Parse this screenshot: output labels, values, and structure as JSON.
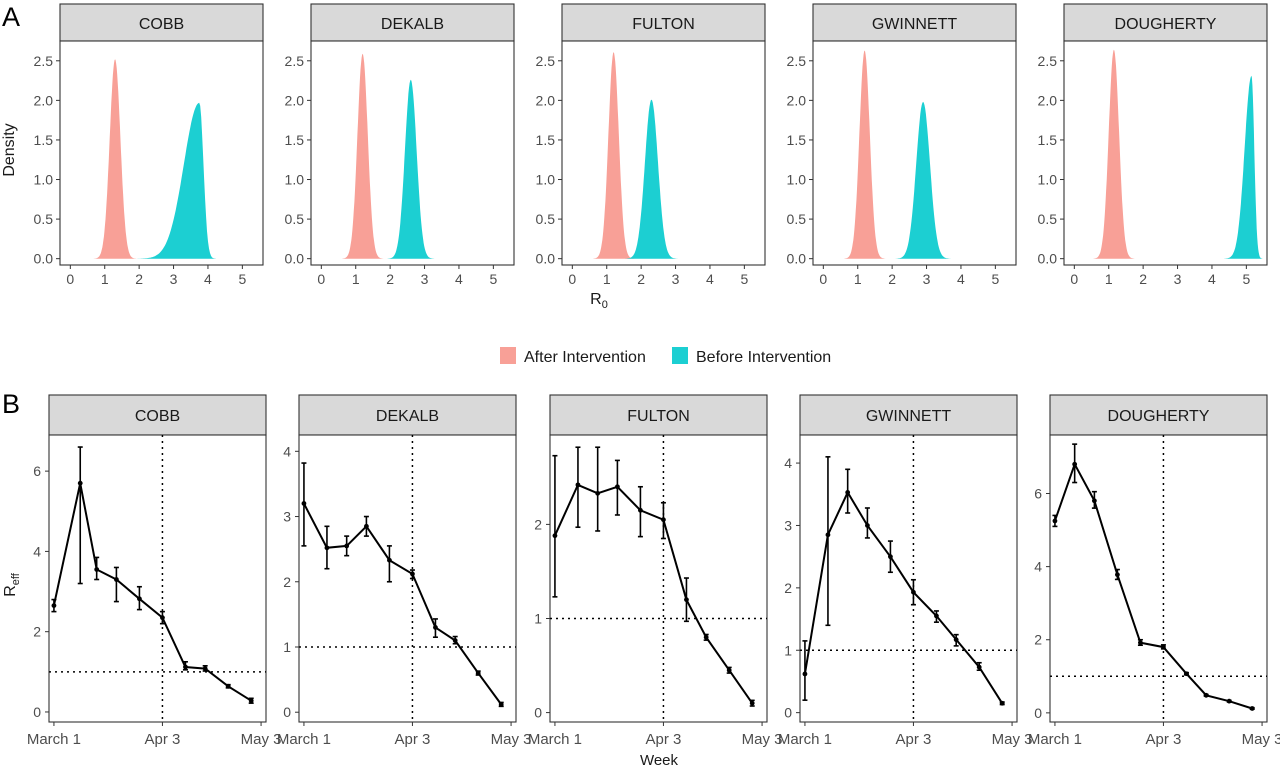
{
  "panel_labels": {
    "a": "A",
    "b": "B"
  },
  "legend": {
    "items": [
      {
        "label": "After Intervention",
        "color": "#F8A097"
      },
      {
        "label": "Before Intervention",
        "color": "#1CCFD2"
      }
    ]
  },
  "colors": {
    "after": "#F8A097",
    "before": "#1CCFD2",
    "strip_bg": "#D9D9D9",
    "line": "#000000"
  },
  "chart_data": [
    {
      "type": "area",
      "xlabel": "R",
      "xlabel_sub": "0",
      "ylabel": "Density",
      "xlim": [
        -0.3,
        5.6
      ],
      "ylim": [
        -0.08,
        2.75
      ],
      "xticks": [
        0,
        1,
        2,
        3,
        4,
        5
      ],
      "yticks": [
        "0.0",
        "0.5",
        "1.0",
        "1.5",
        "2.0",
        "2.5"
      ],
      "grid": false,
      "legend_position": "bottom",
      "panels": [
        {
          "name": "COBB",
          "series": [
            {
              "name": "After Intervention",
              "peak_x": 1.3,
              "peak_density": 2.52,
              "sd": 0.155
            },
            {
              "name": "Before Intervention",
              "peak_x": 3.75,
              "peak_density": 1.97,
              "sd_left": 0.45,
              "sd_right": 0.12
            }
          ]
        },
        {
          "name": "DEKALB",
          "series": [
            {
              "name": "After Intervention",
              "peak_x": 1.2,
              "peak_density": 2.59,
              "sd": 0.15
            },
            {
              "name": "Before Intervention",
              "peak_x": 2.6,
              "peak_density": 2.26,
              "sd": 0.17
            }
          ]
        },
        {
          "name": "FULTON",
          "series": [
            {
              "name": "After Intervention",
              "peak_x": 1.2,
              "peak_density": 2.61,
              "sd": 0.15
            },
            {
              "name": "Before Intervention",
              "peak_x": 2.3,
              "peak_density": 2.01,
              "sd": 0.19
            }
          ]
        },
        {
          "name": "GWINNETT",
          "series": [
            {
              "name": "After Intervention",
              "peak_x": 1.2,
              "peak_density": 2.63,
              "sd": 0.15
            },
            {
              "name": "Before Intervention",
              "peak_x": 2.9,
              "peak_density": 1.98,
              "sd": 0.2
            }
          ]
        },
        {
          "name": "DOUGHERTY",
          "series": [
            {
              "name": "After Intervention",
              "peak_x": 1.15,
              "peak_density": 2.64,
              "sd": 0.15
            },
            {
              "name": "Before Intervention",
              "peak_x": 5.15,
              "peak_density": 2.31,
              "sd_left": 0.2,
              "sd_right": 0.08
            }
          ]
        }
      ]
    },
    {
      "type": "line",
      "xlabel": "Week",
      "ylabel": "R",
      "ylabel_sub": "eff",
      "xlim": [
        -1.5,
        64.5
      ],
      "xticks": [
        0,
        33,
        63
      ],
      "xtick_labels": [
        "March 1",
        "Apr 3",
        "May 3"
      ],
      "vline_x": 33,
      "hline_y": 1,
      "grid": false,
      "panels": [
        {
          "name": "COBB",
          "ylim": [
            -0.25,
            6.9
          ],
          "yticks": [
            0,
            2,
            4,
            6
          ],
          "x": [
            0,
            8,
            13,
            19,
            26,
            33,
            40,
            46,
            53,
            60
          ],
          "y": [
            2.65,
            5.7,
            3.55,
            3.3,
            2.82,
            2.35,
            1.12,
            1.08,
            0.64,
            0.28
          ],
          "lower": [
            2.5,
            3.2,
            3.3,
            2.75,
            2.55,
            2.2,
            1.05,
            1.02,
            0.6,
            0.22
          ],
          "upper": [
            2.8,
            6.6,
            3.85,
            3.6,
            3.12,
            2.5,
            1.25,
            1.15,
            0.68,
            0.34
          ]
        },
        {
          "name": "DEKALB",
          "ylim": [
            -0.15,
            4.25
          ],
          "yticks": [
            0,
            1,
            2,
            3,
            4
          ],
          "x": [
            0,
            7,
            13,
            19,
            26,
            33,
            40,
            46,
            53,
            60
          ],
          "y": [
            3.2,
            2.52,
            2.55,
            2.85,
            2.33,
            2.12,
            1.3,
            1.1,
            0.6,
            0.12
          ],
          "lower": [
            2.55,
            2.2,
            2.4,
            2.7,
            2.0,
            2.05,
            1.15,
            1.05,
            0.57,
            0.09
          ],
          "upper": [
            3.82,
            2.85,
            2.7,
            3.0,
            2.55,
            2.18,
            1.43,
            1.16,
            0.63,
            0.15
          ]
        },
        {
          "name": "FULTON",
          "ylim": [
            -0.1,
            2.95
          ],
          "yticks": [
            0,
            1,
            2
          ],
          "x": [
            0,
            7,
            13,
            19,
            26,
            33,
            40,
            46,
            53,
            60
          ],
          "y": [
            1.88,
            2.42,
            2.33,
            2.4,
            2.15,
            2.05,
            1.2,
            0.8,
            0.45,
            0.1
          ],
          "lower": [
            1.23,
            1.97,
            1.93,
            2.1,
            1.87,
            1.85,
            0.97,
            0.77,
            0.42,
            0.07
          ],
          "upper": [
            2.73,
            2.82,
            2.82,
            2.68,
            2.4,
            2.23,
            1.43,
            0.83,
            0.48,
            0.13
          ]
        },
        {
          "name": "GWINNETT",
          "ylim": [
            -0.15,
            4.45
          ],
          "yticks": [
            0,
            1,
            2,
            3,
            4
          ],
          "x": [
            0,
            7,
            13,
            19,
            26,
            33,
            40,
            46,
            53,
            60
          ],
          "y": [
            0.62,
            2.85,
            3.53,
            3.0,
            2.5,
            1.93,
            1.55,
            1.17,
            0.73,
            0.15
          ],
          "lower": [
            0.2,
            1.4,
            3.2,
            2.8,
            2.25,
            1.73,
            1.45,
            1.07,
            0.68,
            0.13
          ],
          "upper": [
            1.15,
            4.1,
            3.9,
            3.28,
            2.75,
            2.13,
            1.63,
            1.25,
            0.8,
            0.17
          ]
        },
        {
          "name": "DOUGHERTY",
          "ylim": [
            -0.25,
            7.6
          ],
          "yticks": [
            0,
            2,
            4,
            6
          ],
          "x": [
            0,
            6,
            12,
            19,
            26,
            33,
            40,
            46,
            53,
            60
          ],
          "y": [
            5.25,
            6.8,
            5.8,
            3.78,
            1.92,
            1.8,
            1.07,
            0.48,
            0.32,
            0.12
          ],
          "lower": [
            5.1,
            6.3,
            5.6,
            3.65,
            1.85,
            1.75,
            1.04,
            0.46,
            0.3,
            0.1
          ],
          "upper": [
            5.4,
            7.35,
            6.05,
            3.92,
            2.0,
            1.86,
            1.1,
            0.5,
            0.34,
            0.14
          ]
        }
      ]
    }
  ]
}
